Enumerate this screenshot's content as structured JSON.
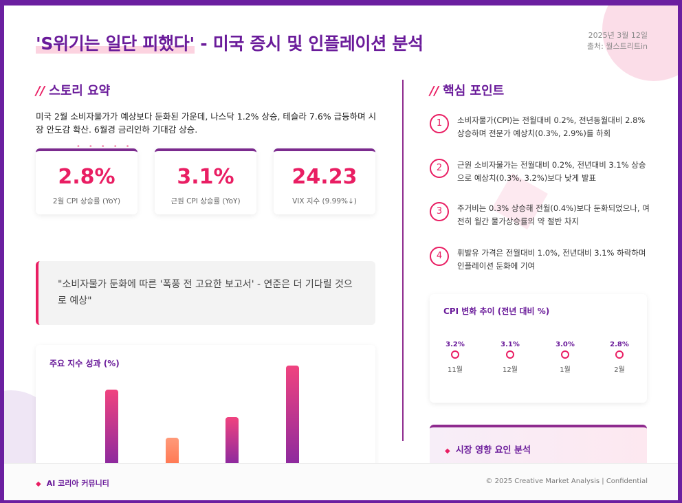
{
  "header": {
    "title_highlight": "'S위기는 일단 피했다'",
    "title_rest": " - 미국 증시 및 인플레이션 분석",
    "date": "2025년 3월 12일",
    "source": "출처: 월스트리트in"
  },
  "story": {
    "heading": "스토리 요약",
    "summary": "미국 2월 소비자물가가 예상보다 둔화된 가운데, 나스닥 1.2% 상승, 테슬라 7.6% 급등하며 시장 안도감 확산. 6월경 금리인하 기대감 상승.",
    "dots": "•••••"
  },
  "stats": [
    {
      "value": "2.8%",
      "label": "2월 CPI 상승률 (YoY)"
    },
    {
      "value": "3.1%",
      "label": "근원 CPI 상승률 (YoY)"
    },
    {
      "value": "24.23",
      "label": "VIX 지수 (9.99%↓)"
    }
  ],
  "quote": "\"소비자물가 둔화에 따른 '폭풍 전 고요한 보고서' - 연준은 더 기다릴 것으로 예상\"",
  "index_chart": {
    "title": "주요 지수 성과 (%)"
  },
  "key_points": {
    "heading": "핵심 포인트",
    "items": [
      {
        "num": "1",
        "text": "소비자물가(CPI)는 전월대비 0.2%, 전년동월대비 2.8% 상승하며 전문가 예상치(0.3%, 2.9%)를 하회"
      },
      {
        "num": "2",
        "text": "근원 소비자물가는 전월대비 0.2%, 전년대비 3.1% 상승으로 예상치(0.3%, 3.2%)보다 낮게 발표"
      },
      {
        "num": "3",
        "text": "주거비는 0.3% 상승해 전월(0.4%)보다 둔화되었으나, 여전히 월간 물가상승률의 약 절반 차지"
      },
      {
        "num": "4",
        "text": "휘발유 가격은 전월대비 1.0%, 전년대비 3.1% 하락하며 인플레이션 둔화에 기여"
      }
    ]
  },
  "cpi_chart": {
    "title": "CPI 변화 추이 (전년 대비 %)"
  },
  "market": {
    "heading": "시장 영향 요인 분석"
  },
  "footer": {
    "left": "AI 코리아 커뮤니티",
    "right": "© 2025 Creative Market Analysis | Confidential"
  },
  "colors": {
    "accent_pink": "#e91e63",
    "brand_purple": "#6a1b9a",
    "bar_orange": "#ff8a65"
  },
  "chart_data": [
    {
      "type": "bar",
      "title": "주요 지수 성과 (%)",
      "categories": [
        "",
        "",
        "",
        ""
      ],
      "values": [
        5.7,
        2.0,
        3.6,
        7.6
      ],
      "ylim": [
        0,
        8
      ],
      "grid": false
    },
    {
      "type": "line",
      "title": "CPI 변화 추이 (전년 대비 %)",
      "x": [
        "11월",
        "12월",
        "1월",
        "2월"
      ],
      "y": [
        3.2,
        3.1,
        3.0,
        2.8
      ],
      "labels": [
        "3.2%",
        "3.1%",
        "3.0%",
        "2.8%"
      ],
      "grid": false
    }
  ]
}
